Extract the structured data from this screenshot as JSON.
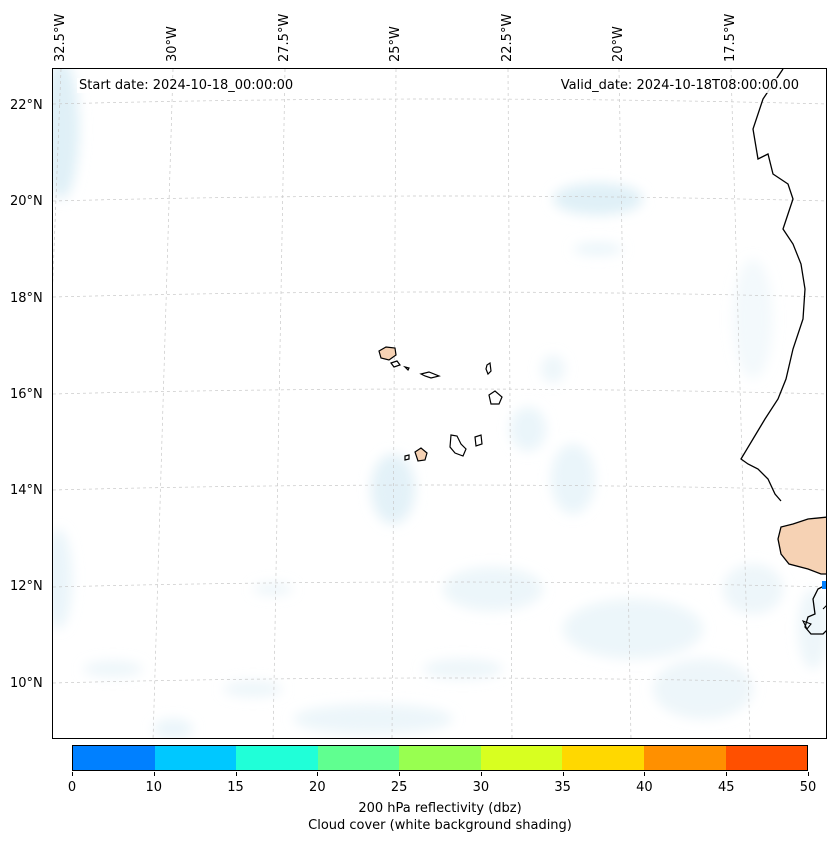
{
  "map": {
    "start_date": "Start date: 2024-10-18_00:00:00",
    "valid_date": "Valid_date: 2024-10-18T08:00:00.00",
    "lon_labels": [
      "32.5°W",
      "30°W",
      "27.5°W",
      "25°W",
      "22.5°W",
      "20°W",
      "17.5°W"
    ],
    "lat_labels": [
      "22°N",
      "20°N",
      "18°N",
      "16°N",
      "14°N",
      "12°N",
      "10°N"
    ]
  },
  "colorbar": {
    "ticks": [
      "0",
      "10",
      "15",
      "20",
      "25",
      "30",
      "35",
      "40",
      "45",
      "50"
    ],
    "colors": [
      "#0080ff",
      "#00c8ff",
      "#20ffd8",
      "#60ff90",
      "#98ff50",
      "#d8ff20",
      "#ffd800",
      "#ff9000",
      "#ff5000"
    ],
    "label": "200 hPa reflectivity (dbz)",
    "sublabel": "Cloud cover (white background shading)"
  },
  "colors": {
    "cloud_shading": "#dceef6",
    "land_highlight": "#f6d2b4",
    "coastline": "#000000",
    "gridline": "#c8c8c8"
  }
}
